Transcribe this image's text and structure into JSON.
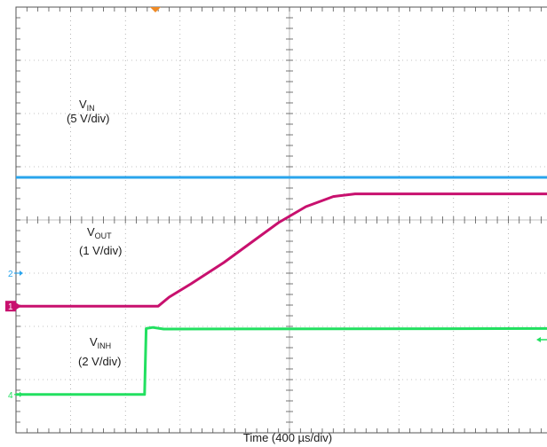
{
  "chart_data": {
    "type": "line",
    "xlabel": "Time (400 µs/div)",
    "grid": true,
    "divisions": {
      "x": 10,
      "y": 8
    },
    "series": [
      {
        "name": "VIN",
        "label_main": "V",
        "label_sub": "IN",
        "scale": "(5 V/div)",
        "channel": "3",
        "color": "#2aa4ec",
        "points": [
          [
            0.0,
            4.8
          ],
          [
            10.0,
            4.8
          ]
        ]
      },
      {
        "name": "VOUT",
        "label_main": "V",
        "label_sub": "OUT",
        "scale": "(1 V/div)",
        "channel": "1",
        "color": "#c8106e",
        "points": [
          [
            0.0,
            2.38
          ],
          [
            2.6,
            2.38
          ],
          [
            2.8,
            2.55
          ],
          [
            3.2,
            2.8
          ],
          [
            3.8,
            3.2
          ],
          [
            4.4,
            3.65
          ],
          [
            4.8,
            3.95
          ],
          [
            5.3,
            4.25
          ],
          [
            5.8,
            4.44
          ],
          [
            6.2,
            4.49
          ],
          [
            10.0,
            4.49
          ]
        ]
      },
      {
        "name": "VINH",
        "label_main": "V",
        "label_sub": "INH",
        "scale": "(2 V/div)",
        "channel": "4",
        "color": "#22e060",
        "points": [
          [
            0.0,
            0.72
          ],
          [
            2.35,
            0.72
          ],
          [
            2.38,
            1.96
          ],
          [
            2.5,
            1.98
          ],
          [
            2.7,
            1.95
          ],
          [
            10.0,
            1.96
          ]
        ]
      }
    ],
    "ground_markers": [
      {
        "num": "2",
        "color": "#2aa4ec",
        "y": 3.0
      },
      {
        "num": "1",
        "color": "#c8106e",
        "y": 2.38
      },
      {
        "num": "4",
        "color": "#22e060",
        "y": 0.72
      }
    ]
  }
}
